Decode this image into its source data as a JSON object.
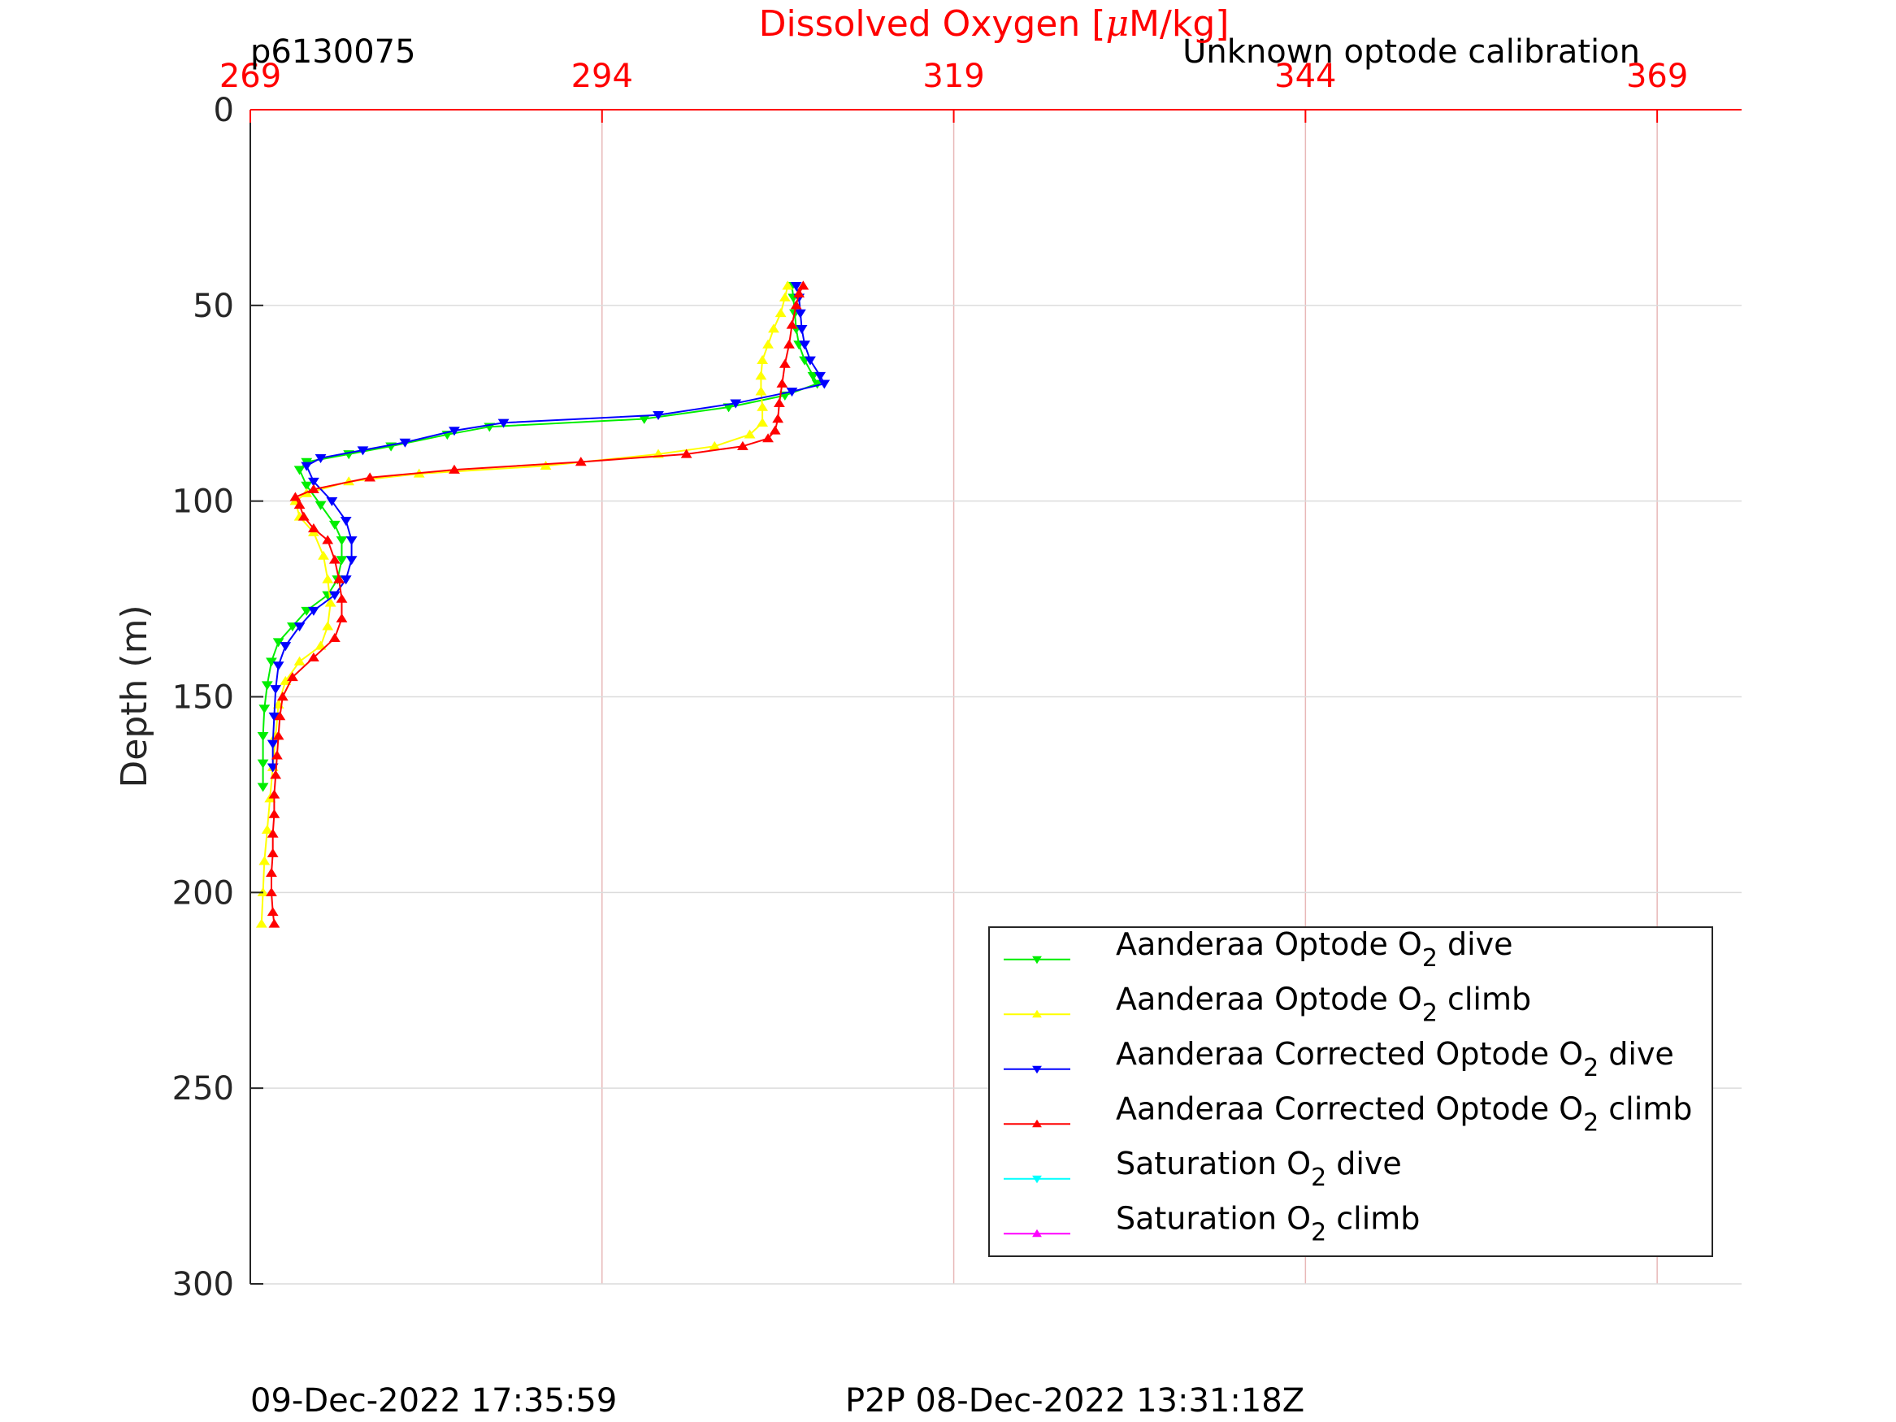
{
  "header": {
    "profile_id": "p6130075",
    "calibration_note": "Unknown optode calibration"
  },
  "footer": {
    "plot_time": "09-Dec-2022 17:35:59",
    "p2p_time": "P2P 08-Dec-2022 13:31:18Z"
  },
  "colors": {
    "top_axis": "#ff0000",
    "grid": "#e8b8b8",
    "hgrid": "#dcdcdc",
    "axis": "#262626"
  },
  "chart_data": {
    "type": "line",
    "title": "",
    "xlabel": "Dissolved Oxygen [μM/kg]",
    "xlabel_prefix": "Dissolved Oxygen [",
    "xlabel_mu": "μ",
    "xlabel_suffix": "M/kg]",
    "ylabel": "Depth (m)",
    "xlim": [
      269,
      375
    ],
    "ylim": [
      0,
      300
    ],
    "y_reversed": true,
    "x_axis_position": "top",
    "grid": true,
    "xticks": [
      269,
      294,
      319,
      344,
      369
    ],
    "yticks": [
      0,
      50,
      100,
      150,
      200,
      250,
      300
    ],
    "legend_position": "bottom-right",
    "series": [
      {
        "name": "Aanderaa Optode O2 dive",
        "label_main": "Aanderaa Optode O",
        "label_sub": "2",
        "label_tail": " dive",
        "color": "#00ee00",
        "marker": "down-triangle",
        "points": [
          [
            307.5,
            45
          ],
          [
            307.6,
            48
          ],
          [
            307.7,
            52
          ],
          [
            307.8,
            56
          ],
          [
            308.0,
            60
          ],
          [
            308.4,
            64
          ],
          [
            309.0,
            68
          ],
          [
            309.3,
            70
          ],
          [
            307.0,
            73
          ],
          [
            303.0,
            76
          ],
          [
            297.0,
            79
          ],
          [
            286.0,
            81
          ],
          [
            283.0,
            83
          ],
          [
            279.0,
            86
          ],
          [
            276.0,
            88
          ],
          [
            273.0,
            90
          ],
          [
            272.5,
            92
          ],
          [
            273.0,
            96
          ],
          [
            274.0,
            101
          ],
          [
            275.0,
            106
          ],
          [
            275.5,
            110
          ],
          [
            275.5,
            115
          ],
          [
            275.2,
            120
          ],
          [
            274.5,
            124
          ],
          [
            273.0,
            128
          ],
          [
            272.0,
            132
          ],
          [
            271.0,
            136
          ],
          [
            270.5,
            141
          ],
          [
            270.2,
            147
          ],
          [
            270.0,
            153
          ],
          [
            269.9,
            160
          ],
          [
            269.9,
            167
          ],
          [
            269.9,
            173
          ]
        ]
      },
      {
        "name": "Aanderaa Optode O2 climb",
        "label_main": "Aanderaa Optode O",
        "label_sub": "2",
        "label_tail": " climb",
        "color": "#ffff00",
        "marker": "up-triangle",
        "points": [
          [
            269.8,
            208
          ],
          [
            269.9,
            200
          ],
          [
            270.0,
            192
          ],
          [
            270.2,
            184
          ],
          [
            270.4,
            176
          ],
          [
            270.6,
            168
          ],
          [
            270.8,
            160
          ],
          [
            271.0,
            152
          ],
          [
            271.5,
            146
          ],
          [
            272.5,
            141
          ],
          [
            274.0,
            137
          ],
          [
            274.5,
            132
          ],
          [
            274.7,
            126
          ],
          [
            274.5,
            120
          ],
          [
            274.2,
            114
          ],
          [
            273.5,
            108
          ],
          [
            272.5,
            104
          ],
          [
            272.2,
            100
          ],
          [
            273.0,
            98
          ],
          [
            276.0,
            95
          ],
          [
            281.0,
            93
          ],
          [
            290.0,
            91
          ],
          [
            298.0,
            88
          ],
          [
            302.0,
            86
          ],
          [
            304.5,
            83
          ],
          [
            305.4,
            80
          ],
          [
            305.4,
            76
          ],
          [
            305.3,
            72
          ],
          [
            305.3,
            68
          ],
          [
            305.4,
            64
          ],
          [
            305.8,
            60
          ],
          [
            306.2,
            56
          ],
          [
            306.7,
            52
          ],
          [
            307.0,
            48
          ],
          [
            307.2,
            45
          ]
        ]
      },
      {
        "name": "Aanderaa Corrected Optode O2 dive",
        "label_main": "Aanderaa Corrected Optode O",
        "label_sub": "2",
        "label_tail": " dive",
        "color": "#0000ff",
        "marker": "down-triangle",
        "points": [
          [
            307.8,
            45
          ],
          [
            308.0,
            48
          ],
          [
            308.1,
            52
          ],
          [
            308.2,
            56
          ],
          [
            308.4,
            60
          ],
          [
            308.8,
            64
          ],
          [
            309.5,
            68
          ],
          [
            309.8,
            70
          ],
          [
            307.5,
            72
          ],
          [
            303.5,
            75
          ],
          [
            298.0,
            78
          ],
          [
            287.0,
            80
          ],
          [
            283.5,
            82
          ],
          [
            280.0,
            85
          ],
          [
            277.0,
            87
          ],
          [
            274.0,
            89
          ],
          [
            273.0,
            91
          ],
          [
            273.5,
            95
          ],
          [
            274.8,
            100
          ],
          [
            275.8,
            105
          ],
          [
            276.2,
            110
          ],
          [
            276.2,
            115
          ],
          [
            275.8,
            120
          ],
          [
            275.0,
            124
          ],
          [
            273.5,
            128
          ],
          [
            272.5,
            132
          ],
          [
            271.5,
            137
          ],
          [
            271.0,
            142
          ],
          [
            270.8,
            148
          ],
          [
            270.7,
            155
          ],
          [
            270.6,
            162
          ],
          [
            270.6,
            168
          ]
        ]
      },
      {
        "name": "Aanderaa Corrected Optode O2 climb",
        "label_main": "Aanderaa Corrected Optode O",
        "label_sub": "2",
        "label_tail": " climb",
        "color": "#ff0000",
        "marker": "up-triangle",
        "points": [
          [
            270.7,
            208
          ],
          [
            270.6,
            205
          ],
          [
            270.5,
            200
          ],
          [
            270.5,
            195
          ],
          [
            270.6,
            190
          ],
          [
            270.6,
            185
          ],
          [
            270.7,
            180
          ],
          [
            270.7,
            175
          ],
          [
            270.8,
            170
          ],
          [
            270.9,
            165
          ],
          [
            271.0,
            160
          ],
          [
            271.1,
            155
          ],
          [
            271.3,
            150
          ],
          [
            272.0,
            145
          ],
          [
            273.5,
            140
          ],
          [
            275.0,
            135
          ],
          [
            275.5,
            130
          ],
          [
            275.5,
            125
          ],
          [
            275.3,
            120
          ],
          [
            275.0,
            115
          ],
          [
            274.5,
            110
          ],
          [
            273.5,
            107
          ],
          [
            272.8,
            104
          ],
          [
            272.5,
            101
          ],
          [
            272.2,
            99
          ],
          [
            273.5,
            97
          ],
          [
            277.5,
            94
          ],
          [
            283.5,
            92
          ],
          [
            292.5,
            90
          ],
          [
            300.0,
            88
          ],
          [
            304.0,
            86
          ],
          [
            305.8,
            84
          ],
          [
            306.3,
            82
          ],
          [
            306.5,
            79
          ],
          [
            306.6,
            75
          ],
          [
            306.8,
            70
          ],
          [
            307.0,
            65
          ],
          [
            307.3,
            60
          ],
          [
            307.5,
            55
          ],
          [
            307.8,
            50
          ],
          [
            308.0,
            47
          ],
          [
            308.3,
            45
          ]
        ]
      },
      {
        "name": "Saturation O2 dive",
        "label_main": "Saturation O",
        "label_sub": "2",
        "label_tail": " dive",
        "color": "#00ffff",
        "marker": "down-triangle",
        "points": []
      },
      {
        "name": "Saturation O2 climb",
        "label_main": "Saturation O",
        "label_sub": "2",
        "label_tail": " climb",
        "color": "#ff00ff",
        "marker": "up-triangle",
        "points": []
      }
    ]
  }
}
